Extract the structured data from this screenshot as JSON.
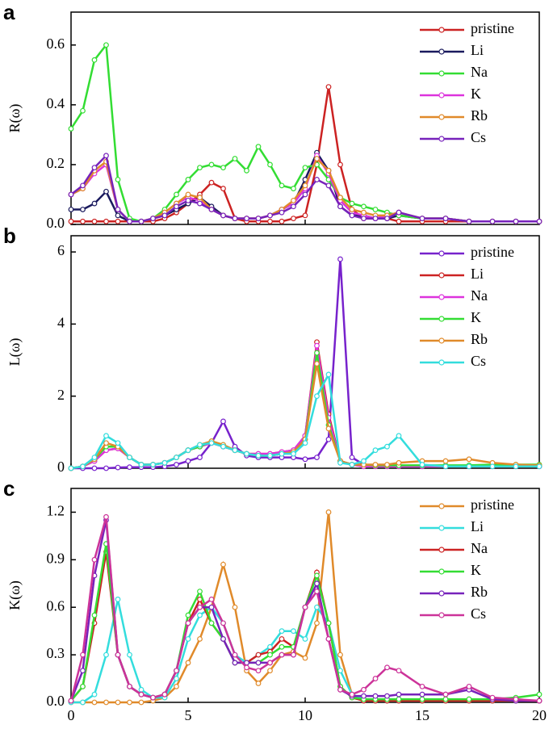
{
  "chart_data": [
    {
      "type": "line",
      "panel_label": "a",
      "ylabel": "R(ω)",
      "show_xtick_labels": false,
      "x": [
        0,
        0.5,
        1,
        1.5,
        2,
        2.5,
        3,
        3.5,
        4,
        4.5,
        5,
        5.5,
        6,
        6.5,
        7,
        7.5,
        8,
        8.5,
        9,
        9.5,
        10,
        10.5,
        11,
        11.5,
        12,
        12.5,
        13,
        13.5,
        14,
        15,
        16,
        17,
        18,
        19,
        20
      ],
      "xlim": [
        0,
        20
      ],
      "xticks": [
        0,
        5,
        10,
        15,
        20
      ],
      "ylim": [
        0,
        0.71
      ],
      "yticks": [
        {
          "value": 0,
          "label": "0.0"
        },
        0.2,
        0.4,
        0.6
      ],
      "series": [
        {
          "name": "pristine",
          "color": "#cc2222",
          "values": [
            0.01,
            0.01,
            0.01,
            0.01,
            0.01,
            0.01,
            0.01,
            0.01,
            0.02,
            0.04,
            0.07,
            0.1,
            0.14,
            0.12,
            0.02,
            0.01,
            0.01,
            0.01,
            0.01,
            0.02,
            0.03,
            0.2,
            0.46,
            0.2,
            0.05,
            0.02,
            0.02,
            0.02,
            0.01,
            0.01,
            0.01,
            0.01,
            0.01,
            0.01,
            0.01
          ]
        },
        {
          "name": "Li",
          "color": "#1a1a5e",
          "values": [
            0.05,
            0.05,
            0.07,
            0.11,
            0.03,
            0.01,
            0.01,
            0.02,
            0.03,
            0.05,
            0.07,
            0.09,
            0.06,
            0.03,
            0.02,
            0.02,
            0.02,
            0.03,
            0.05,
            0.07,
            0.15,
            0.24,
            0.18,
            0.06,
            0.03,
            0.03,
            0.02,
            0.02,
            0.03,
            0.02,
            0.02,
            0.01,
            0.01,
            0.01,
            0.01
          ]
        },
        {
          "name": "Na",
          "color": "#33dd33",
          "values": [
            0.32,
            0.38,
            0.55,
            0.6,
            0.15,
            0.02,
            0.01,
            0.02,
            0.05,
            0.1,
            0.15,
            0.19,
            0.2,
            0.19,
            0.22,
            0.18,
            0.26,
            0.2,
            0.13,
            0.12,
            0.19,
            0.2,
            0.15,
            0.09,
            0.07,
            0.06,
            0.05,
            0.04,
            0.03,
            0.02,
            0.02,
            0.01,
            0.01,
            0.01,
            0.01
          ]
        },
        {
          "name": "K",
          "color": "#dd33dd",
          "values": [
            0.1,
            0.12,
            0.17,
            0.2,
            0.05,
            0.01,
            0.01,
            0.02,
            0.04,
            0.07,
            0.09,
            0.08,
            0.05,
            0.03,
            0.02,
            0.02,
            0.02,
            0.03,
            0.05,
            0.07,
            0.12,
            0.23,
            0.17,
            0.08,
            0.04,
            0.03,
            0.02,
            0.03,
            0.04,
            0.02,
            0.02,
            0.01,
            0.01,
            0.01,
            0.01
          ]
        },
        {
          "name": "Rb",
          "color": "#e08a2a",
          "values": [
            0.1,
            0.12,
            0.18,
            0.21,
            0.05,
            0.01,
            0.01,
            0.02,
            0.04,
            0.07,
            0.1,
            0.09,
            0.05,
            0.03,
            0.02,
            0.02,
            0.02,
            0.03,
            0.05,
            0.08,
            0.13,
            0.22,
            0.18,
            0.09,
            0.05,
            0.04,
            0.03,
            0.03,
            0.04,
            0.02,
            0.02,
            0.01,
            0.01,
            0.01,
            0.01
          ]
        },
        {
          "name": "Cs",
          "color": "#7722bb",
          "values": [
            0.1,
            0.13,
            0.19,
            0.23,
            0.05,
            0.01,
            0.01,
            0.02,
            0.03,
            0.06,
            0.08,
            0.07,
            0.05,
            0.03,
            0.02,
            0.02,
            0.02,
            0.03,
            0.04,
            0.06,
            0.1,
            0.15,
            0.13,
            0.06,
            0.03,
            0.02,
            0.02,
            0.02,
            0.04,
            0.02,
            0.02,
            0.01,
            0.01,
            0.01,
            0.01
          ]
        }
      ]
    },
    {
      "type": "line",
      "panel_label": "b",
      "ylabel": "L(ω)",
      "show_xtick_labels": false,
      "x": [
        0,
        0.5,
        1,
        1.5,
        2,
        2.5,
        3,
        3.5,
        4,
        4.5,
        5,
        5.5,
        6,
        6.5,
        7,
        7.5,
        8,
        8.5,
        9,
        9.5,
        10,
        10.5,
        11,
        11.5,
        12,
        12.5,
        13,
        13.5,
        14,
        15,
        16,
        17,
        18,
        19,
        20
      ],
      "xlim": [
        0,
        20
      ],
      "xticks": [
        0,
        5,
        10,
        15,
        20
      ],
      "ylim": [
        0,
        6.45
      ],
      "yticks": [
        0,
        2,
        4,
        6
      ],
      "series": [
        {
          "name": "pristine",
          "color": "#7722cc",
          "values": [
            0,
            0,
            0,
            0,
            0.02,
            0.03,
            0.03,
            0.03,
            0.05,
            0.1,
            0.2,
            0.3,
            0.7,
            1.3,
            0.6,
            0.35,
            0.3,
            0.3,
            0.3,
            0.3,
            0.25,
            0.3,
            0.8,
            5.8,
            0.3,
            0.1,
            0.05,
            0.05,
            0.05,
            0.05,
            0.05,
            0.05,
            0.05,
            0.05,
            0.05
          ]
        },
        {
          "name": "Li",
          "color": "#cc2222",
          "values": [
            0,
            0.05,
            0.2,
            0.5,
            0.55,
            0.3,
            0.1,
            0.1,
            0.15,
            0.3,
            0.5,
            0.6,
            0.7,
            0.6,
            0.5,
            0.4,
            0.4,
            0.4,
            0.45,
            0.5,
            0.9,
            3.5,
            1.5,
            0.2,
            0.1,
            0.05,
            0.05,
            0.05,
            0.05,
            0.05,
            0.05,
            0.05,
            0.05,
            0.05,
            0.05
          ]
        },
        {
          "name": "Na",
          "color": "#dd33dd",
          "values": [
            0,
            0.05,
            0.2,
            0.5,
            0.55,
            0.3,
            0.1,
            0.1,
            0.15,
            0.3,
            0.5,
            0.6,
            0.7,
            0.6,
            0.5,
            0.4,
            0.4,
            0.4,
            0.45,
            0.5,
            0.9,
            3.4,
            1.4,
            0.2,
            0.1,
            0.05,
            0.05,
            0.05,
            0.05,
            0.05,
            0.05,
            0.05,
            0.05,
            0.05,
            0.05
          ]
        },
        {
          "name": "K",
          "color": "#33dd33",
          "values": [
            0,
            0.05,
            0.25,
            0.6,
            0.6,
            0.3,
            0.1,
            0.1,
            0.15,
            0.3,
            0.5,
            0.6,
            0.75,
            0.65,
            0.5,
            0.4,
            0.35,
            0.35,
            0.4,
            0.45,
            0.8,
            3.2,
            1.2,
            0.2,
            0.1,
            0.1,
            0.08,
            0.08,
            0.08,
            0.08,
            0.08,
            0.08,
            0.1,
            0.1,
            0.1
          ]
        },
        {
          "name": "Rb",
          "color": "#e08a2a",
          "values": [
            0,
            0.05,
            0.25,
            0.7,
            0.6,
            0.3,
            0.1,
            0.1,
            0.15,
            0.3,
            0.5,
            0.65,
            0.75,
            0.65,
            0.5,
            0.4,
            0.35,
            0.35,
            0.4,
            0.45,
            0.8,
            2.9,
            1.1,
            0.2,
            0.1,
            0.1,
            0.1,
            0.1,
            0.15,
            0.2,
            0.2,
            0.25,
            0.15,
            0.1,
            0.08
          ]
        },
        {
          "name": "Cs",
          "color": "#33dddd",
          "values": [
            0,
            0.05,
            0.3,
            0.9,
            0.7,
            0.3,
            0.1,
            0.1,
            0.15,
            0.3,
            0.5,
            0.65,
            0.7,
            0.6,
            0.5,
            0.4,
            0.35,
            0.35,
            0.4,
            0.4,
            0.7,
            2.0,
            2.6,
            0.15,
            0.1,
            0.2,
            0.5,
            0.6,
            0.9,
            0.1,
            0.05,
            0.05,
            0.05,
            0.05,
            0.05
          ]
        }
      ]
    },
    {
      "type": "line",
      "panel_label": "c",
      "ylabel": "K(ω)",
      "show_xtick_labels": true,
      "x": [
        0,
        0.5,
        1,
        1.5,
        2,
        2.5,
        3,
        3.5,
        4,
        4.5,
        5,
        5.5,
        6,
        6.5,
        7,
        7.5,
        8,
        8.5,
        9,
        9.5,
        10,
        10.5,
        11,
        11.5,
        12,
        12.5,
        13,
        13.5,
        14,
        15,
        16,
        17,
        18,
        19,
        20
      ],
      "xlim": [
        0,
        20
      ],
      "xticks": [
        0,
        5,
        10,
        15,
        20
      ],
      "ylim": [
        0,
        1.35
      ],
      "yticks": [
        {
          "value": 0,
          "label": "0.0"
        },
        0.3,
        0.6,
        0.9,
        1.2
      ],
      "series": [
        {
          "name": "pristine",
          "color": "#e08a2a",
          "values": [
            0,
            0,
            0,
            0,
            0,
            0,
            0,
            0.01,
            0.03,
            0.1,
            0.25,
            0.4,
            0.6,
            0.87,
            0.6,
            0.2,
            0.12,
            0.2,
            0.3,
            0.32,
            0.28,
            0.5,
            1.2,
            0.3,
            0.05,
            0.02,
            0.01,
            0.01,
            0.01,
            0.01,
            0.01,
            0.01,
            0.01,
            0.01,
            0.01
          ]
        },
        {
          "name": "Li",
          "color": "#33dddd",
          "values": [
            0,
            0,
            0.05,
            0.3,
            0.65,
            0.3,
            0.08,
            0.03,
            0.03,
            0.15,
            0.4,
            0.55,
            0.6,
            0.5,
            0.3,
            0.25,
            0.3,
            0.35,
            0.45,
            0.45,
            0.4,
            0.6,
            0.5,
            0.2,
            0.05,
            0.02,
            0.01,
            0.01,
            0.01,
            0.01,
            0.01,
            0.01,
            0.01,
            0.01,
            0.01
          ]
        },
        {
          "name": "Na",
          "color": "#cc2222",
          "values": [
            0.01,
            0.1,
            0.5,
            0.95,
            0.3,
            0.1,
            0.05,
            0.03,
            0.05,
            0.2,
            0.5,
            0.65,
            0.5,
            0.4,
            0.25,
            0.25,
            0.3,
            0.32,
            0.4,
            0.35,
            0.6,
            0.82,
            0.5,
            0.1,
            0.03,
            0.01,
            0.01,
            0.01,
            0.01,
            0.01,
            0.01,
            0.01,
            0.01,
            0.01,
            0.01
          ]
        },
        {
          "name": "K",
          "color": "#33dd33",
          "values": [
            0.01,
            0.1,
            0.55,
            1.0,
            0.3,
            0.1,
            0.05,
            0.03,
            0.05,
            0.2,
            0.55,
            0.7,
            0.5,
            0.4,
            0.25,
            0.25,
            0.25,
            0.3,
            0.35,
            0.35,
            0.6,
            0.8,
            0.5,
            0.1,
            0.03,
            0.02,
            0.02,
            0.02,
            0.02,
            0.02,
            0.02,
            0.02,
            0.02,
            0.03,
            0.05
          ]
        },
        {
          "name": "Rb",
          "color": "#7722bb",
          "values": [
            0.01,
            0.2,
            0.8,
            1.15,
            0.3,
            0.1,
            0.05,
            0.03,
            0.05,
            0.2,
            0.5,
            0.6,
            0.6,
            0.4,
            0.25,
            0.25,
            0.25,
            0.25,
            0.3,
            0.3,
            0.6,
            0.75,
            0.4,
            0.08,
            0.04,
            0.04,
            0.04,
            0.04,
            0.05,
            0.05,
            0.05,
            0.08,
            0.02,
            0.01,
            0.01
          ]
        },
        {
          "name": "Cs",
          "color": "#cc3399",
          "values": [
            0.01,
            0.3,
            0.9,
            1.17,
            0.3,
            0.1,
            0.05,
            0.03,
            0.05,
            0.2,
            0.5,
            0.6,
            0.65,
            0.5,
            0.3,
            0.22,
            0.2,
            0.25,
            0.3,
            0.3,
            0.6,
            0.7,
            0.4,
            0.08,
            0.05,
            0.08,
            0.15,
            0.22,
            0.2,
            0.1,
            0.05,
            0.1,
            0.03,
            0.02,
            0.01
          ]
        }
      ]
    }
  ]
}
